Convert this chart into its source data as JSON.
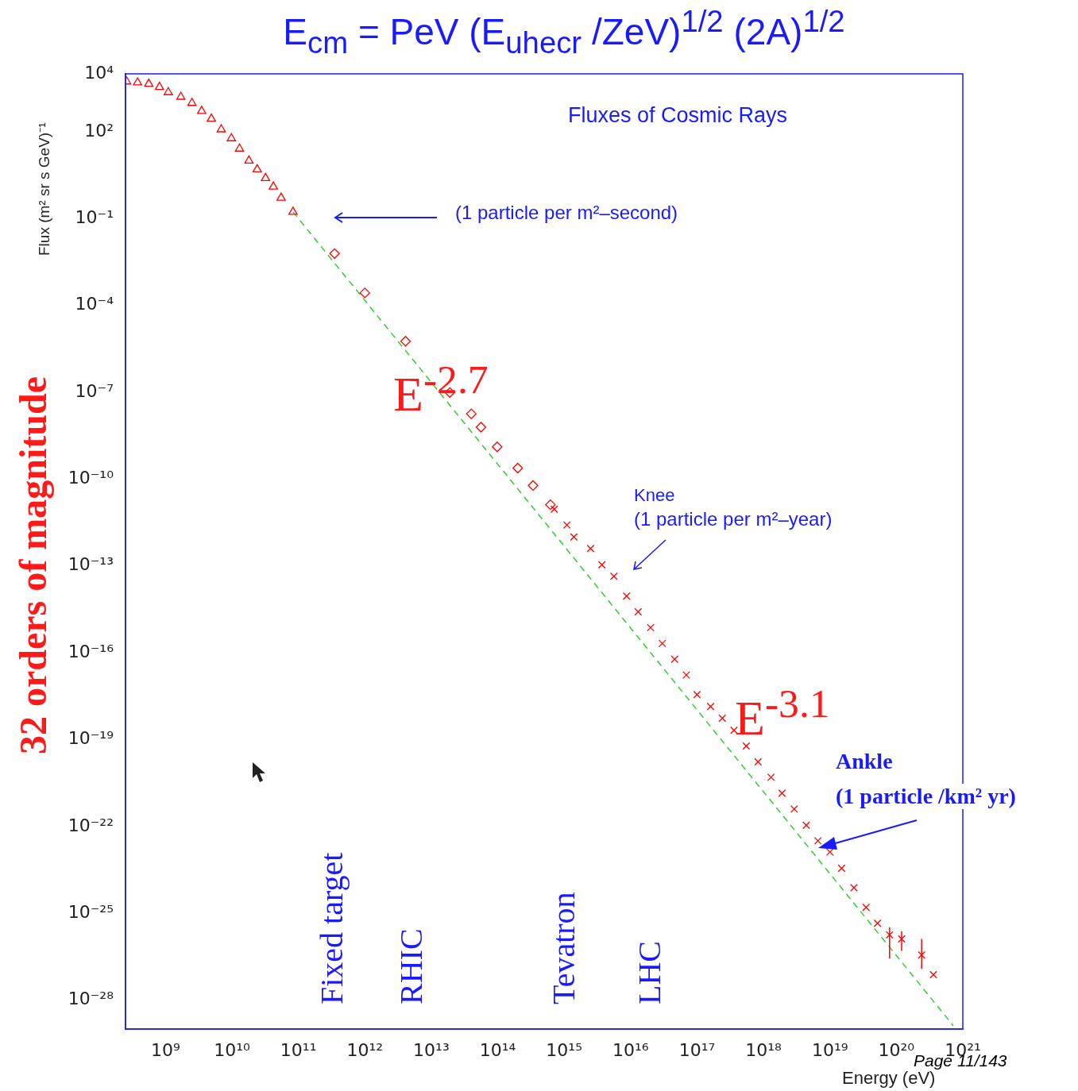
{
  "chart_data": {
    "type": "scatter",
    "title": "E$_{cm}$ = PeV (E$_{uhecr}$ /ZeV)$^{1/2}$  (2A)$^{1/2}$",
    "xlabel": "Energy (eV)",
    "ylabel": "Flux (m² sr s GeV)⁻¹",
    "log": "xy",
    "grid": false,
    "xlim": [
      250000000.0,
      1e+21
    ],
    "xticks": [
      {
        "value": 1000000000.0,
        "label": "10⁹"
      },
      {
        "value": 10000000000.0,
        "label": "10¹⁰"
      },
      {
        "value": 100000000000.0,
        "label": "10¹¹"
      },
      {
        "value": 1000000000000.0,
        "label": "10¹²"
      },
      {
        "value": 10000000000000.0,
        "label": "10¹³"
      },
      {
        "value": 100000000000000.0,
        "label": "10¹⁴"
      },
      {
        "value": 1000000000000000.0,
        "label": "10¹⁵"
      },
      {
        "value": 1e+16,
        "label": "10¹⁶"
      },
      {
        "value": 1e+17,
        "label": "10¹⁷"
      },
      {
        "value": 1e+18,
        "label": "10¹⁸"
      },
      {
        "value": 1e+19,
        "label": "10¹⁹"
      },
      {
        "value": 1e+20,
        "label": "10²⁰"
      },
      {
        "value": 1e+21,
        "label": "10²¹"
      }
    ],
    "ylim": [
      1e-29,
      10000.0
    ],
    "yticks": [
      {
        "value": 10000.0,
        "label": "10⁴"
      },
      {
        "value": 100.0,
        "label": "10²"
      },
      {
        "value": 0.1,
        "label": "10⁻¹"
      },
      {
        "value": 0.0001,
        "label": "10⁻⁴"
      },
      {
        "value": 1e-07,
        "label": "10⁻⁷"
      },
      {
        "value": 1e-10,
        "label": "10⁻¹⁰"
      },
      {
        "value": 1e-13,
        "label": "10⁻¹³"
      },
      {
        "value": 1e-16,
        "label": "10⁻¹⁶"
      },
      {
        "value": 1e-19,
        "label": "10⁻¹⁹"
      },
      {
        "value": 1e-22,
        "label": "10⁻²²"
      },
      {
        "value": 1e-25,
        "label": "10⁻²⁵"
      },
      {
        "value": 1e-28,
        "label": "10⁻²⁸"
      }
    ],
    "annotations": [
      "Fluxes of Cosmic Rays",
      "(1 particle per m²–second)",
      "E$^{-2.7}$",
      "Knee",
      "(1 particle per m²–year)",
      "E$^{-3.1}$",
      "Ankle",
      "(1 particle /km² yr)",
      "Fixed target",
      "RHIC",
      "Tevatron",
      "LHC",
      "32 orders of magnitude",
      "Page 11/143"
    ],
    "series": [
      {
        "type": "line",
        "color": "#33cc33",
        "line_style": "dashed",
        "marker": "none",
        "x": [
          83000000000.0,
          7.2e+20
        ],
        "values": [
          0.17,
          1.3e-29
        ]
      },
      {
        "type": "scatter",
        "color": "#ff0000",
        "marker": "triangle",
        "x": [
          260000000.0,
          380000000.0,
          560000000.0,
          810000000.0,
          1100000000.0,
          1700000000.0,
          2500000000.0,
          3500000000.0,
          4900000000.0,
          6900000000.0,
          9800000000.0,
          13000000000.0,
          18000000000.0,
          24000000000.0,
          32000000000.0,
          42000000000.0,
          55000000000.0,
          83000000000.0
        ],
        "values": [
          5400.0,
          5000.0,
          4500.0,
          3500.0,
          2300.0,
          1600.0,
          980.0,
          520.0,
          280.0,
          120.0,
          59,
          26,
          10,
          5.0,
          2.5,
          1.26,
          0.52,
          0.17
        ]
      },
      {
        "type": "scatter",
        "color": "#ff0000",
        "marker": "diamond",
        "x": [
          350000000000.0,
          1000000000000.0,
          4100000000000.0,
          19000000000000.0,
          40000000000000.0,
          56000000000000.0,
          98000000000000.0,
          200000000000000.0,
          340000000000000.0,
          620000000000000.0
        ],
        "values": [
          0.0062,
          0.00027,
          5.8e-06,
          9.8e-08,
          1.8e-08,
          6.2e-09,
          1.3e-09,
          2.4e-10,
          6e-11,
          1.3e-11
        ]
      },
      {
        "type": "scatter",
        "color": "#ff0000",
        "marker": "cross",
        "x": [
          710000000000000.0,
          1100000000000000.0,
          1400000000000000.0,
          2500000000000000.0,
          3700000000000000.0,
          5600000000000000.0,
          8700000000000000.0,
          1.3e+16,
          2e+16,
          3e+16,
          4.6e+16,
          6.9e+16,
          1e+17,
          1.6e+17,
          2.4e+17,
          3.6e+17,
          5.5e+17,
          8.3e+17,
          1.3e+18,
          1.9e+18,
          2.9e+18,
          4.4e+18,
          6.6e+18,
          1e+19,
          1.5e+19,
          2.3e+19,
          3.5e+19,
          5.2e+19,
          7.9e+19,
          1.2e+20,
          2.4e+20,
          3.6e+20
        ],
        "values": [
          9.1e-12,
          2.6e-12,
          1e-12,
          4e-13,
          1.1e-13,
          4.4e-14,
          9.1e-15,
          2.6e-15,
          7.4e-16,
          2.1e-16,
          6e-17,
          1.7e-17,
          3.6e-18,
          1.4e-18,
          5.5e-19,
          2.1e-19,
          6e-20,
          1.7e-20,
          5e-21,
          1.4e-21,
          4e-22,
          1.1e-22,
          3.2e-23,
          1.3e-23,
          3.6e-24,
          7.6e-25,
          1.6e-25,
          4.5e-26,
          1.8e-26,
          1.3e-26,
          3.6e-27,
          7.6e-28
        ],
        "errors": [
          null,
          null,
          null,
          null,
          null,
          null,
          null,
          null,
          null,
          null,
          null,
          null,
          null,
          null,
          null,
          null,
          null,
          null,
          null,
          null,
          null,
          null,
          null,
          null,
          null,
          null,
          null,
          null,
          [
            2.7e-27,
            3.3e-26
          ],
          [
            5e-27,
            2.4e-26
          ],
          [
            1.2e-27,
            1.3e-26
          ],
          null
        ]
      }
    ]
  }
}
